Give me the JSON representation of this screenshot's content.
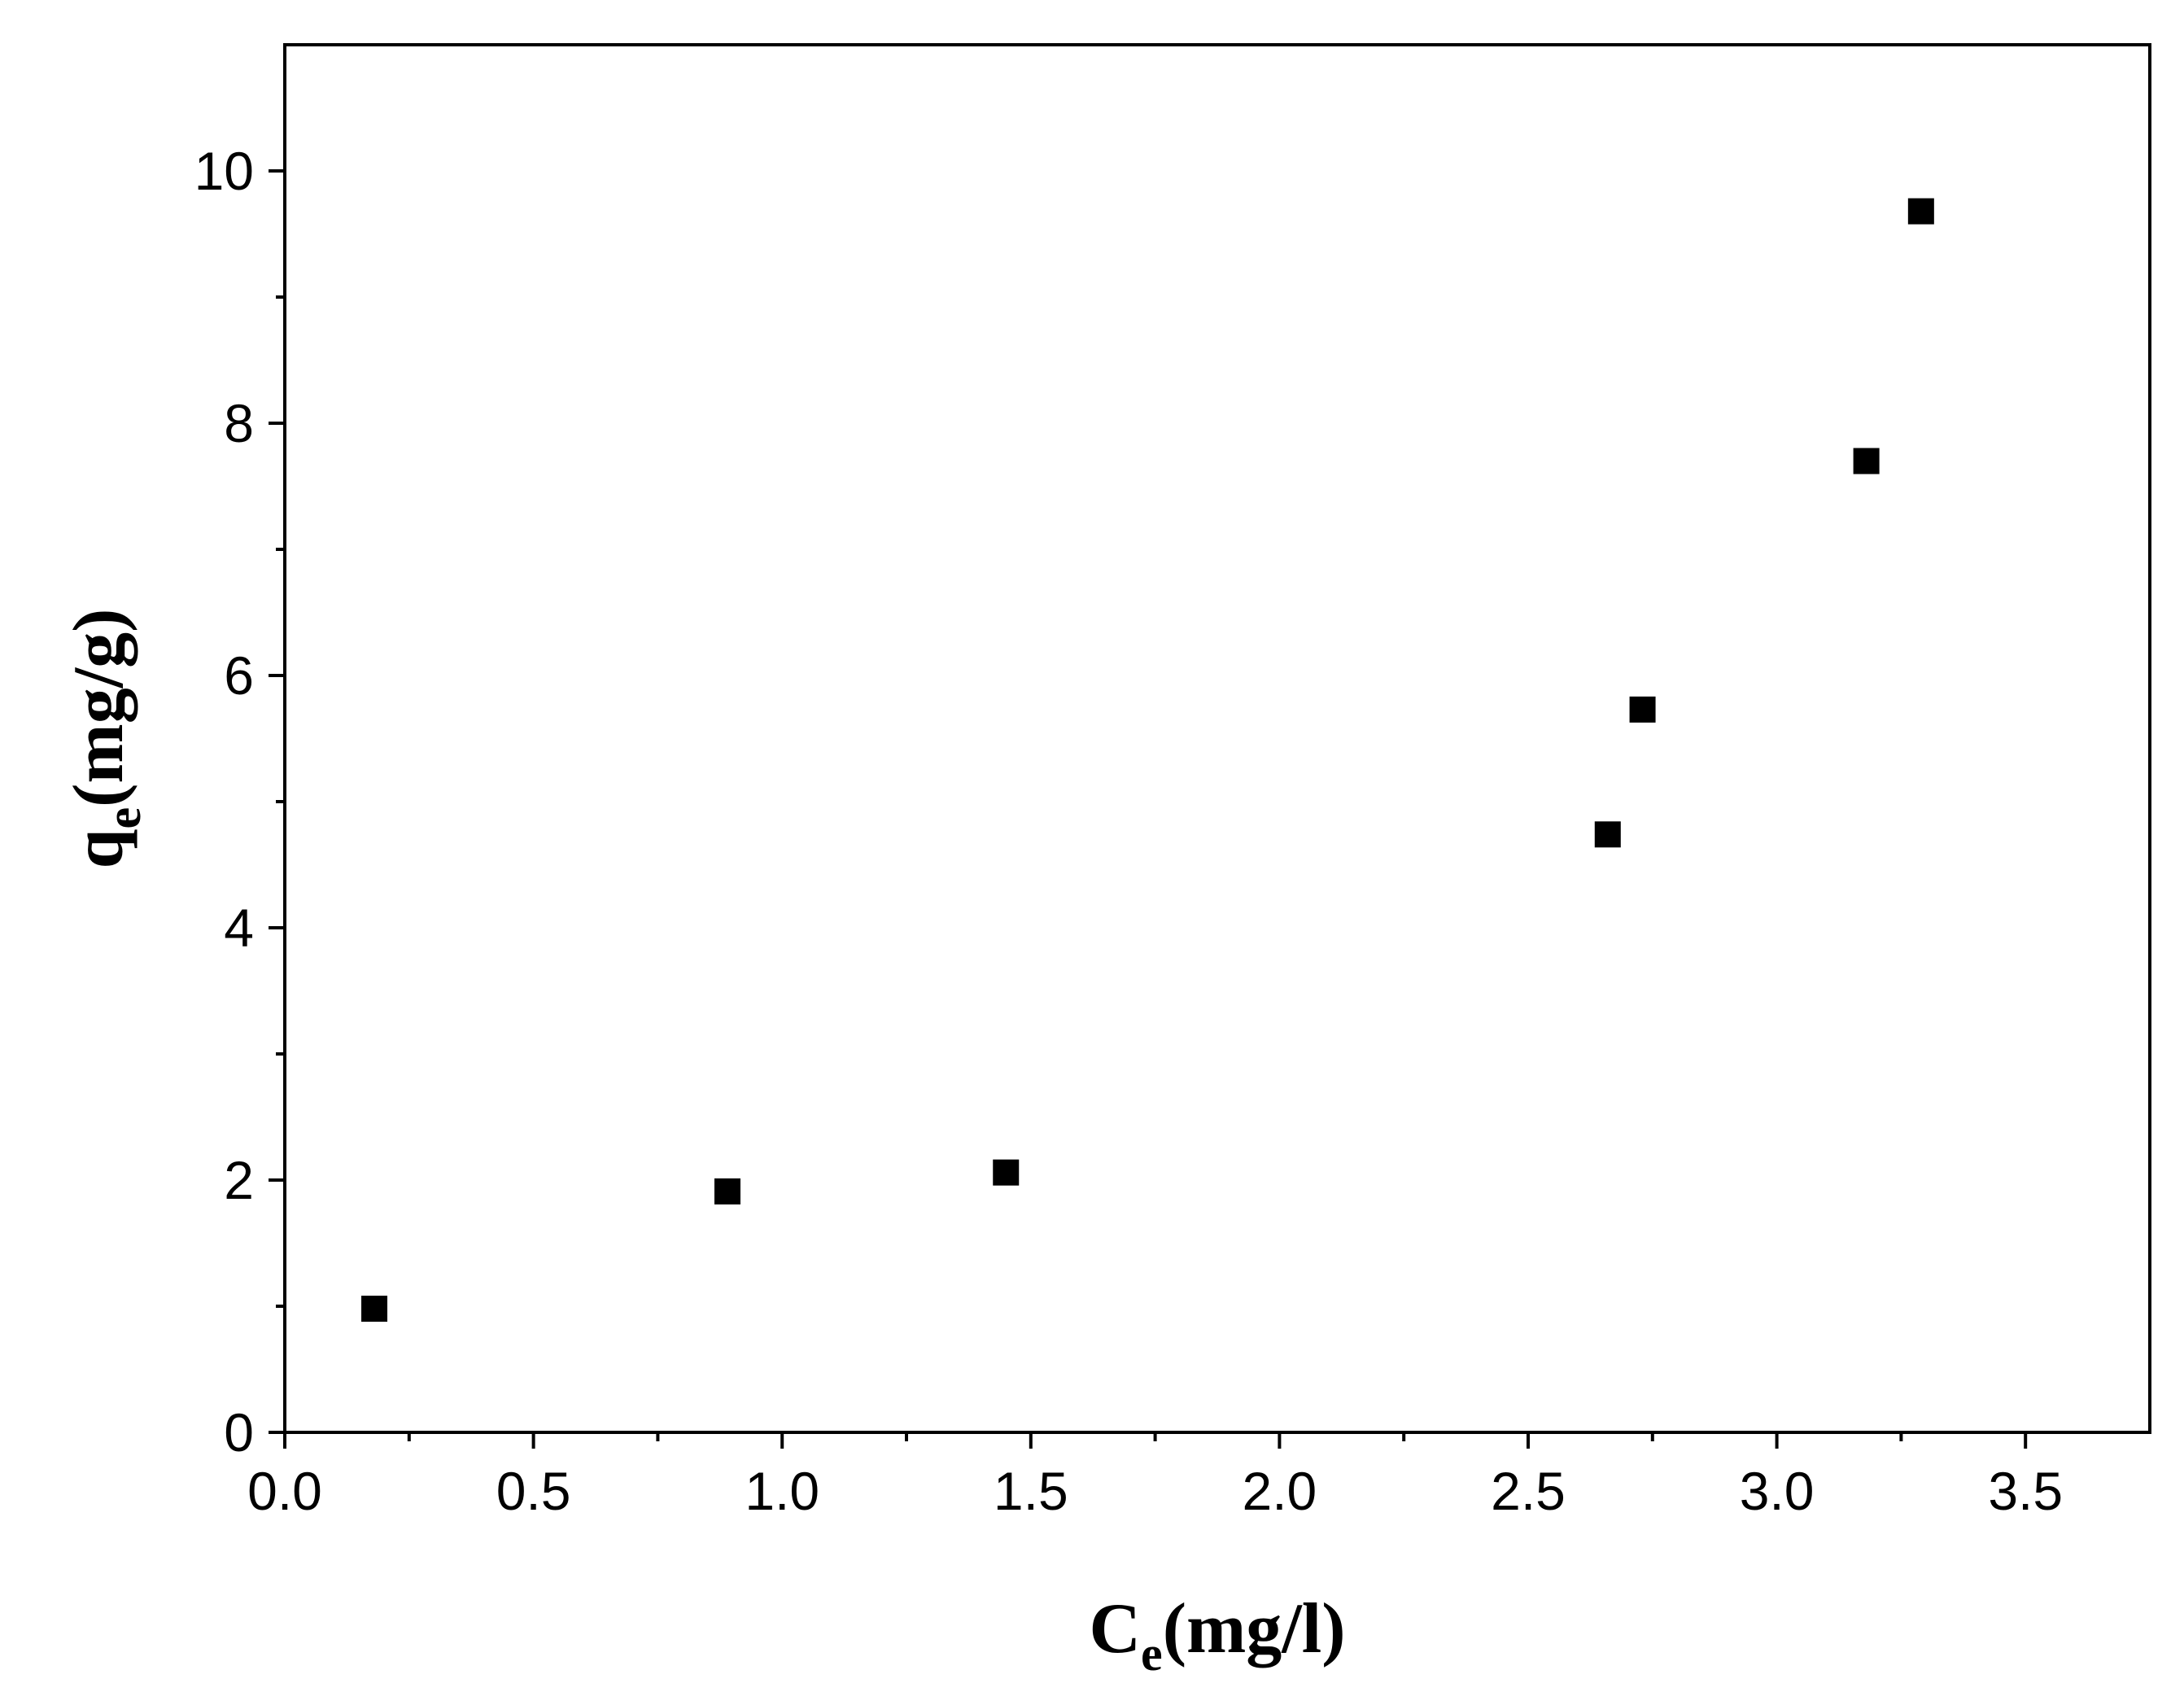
{
  "chart_data": {
    "type": "scatter",
    "title": "",
    "xlabel": {
      "main": "C",
      "sub": "e",
      "rest": "(mg/l)"
    },
    "ylabel": {
      "main": "q",
      "sub": "e",
      "rest": "(mg/g)"
    },
    "xlim": [
      0,
      3.75
    ],
    "ylim": [
      0,
      11
    ],
    "x_ticks": [
      "0.0",
      "0.5",
      "1.0",
      "1.5",
      "2.0",
      "2.5",
      "3.0",
      "3.5"
    ],
    "x_tick_values": [
      0,
      0.5,
      1.0,
      1.5,
      2.0,
      2.5,
      3.0,
      3.5
    ],
    "y_ticks": [
      "0",
      "2",
      "4",
      "6",
      "8",
      "10"
    ],
    "y_tick_values": [
      0,
      2,
      4,
      6,
      8,
      10
    ],
    "grid": false,
    "marker": "square",
    "marker_color": "#000000",
    "series": [
      {
        "points": [
          {
            "x": 0.18,
            "y": 0.98
          },
          {
            "x": 0.89,
            "y": 1.91
          },
          {
            "x": 1.45,
            "y": 2.06
          },
          {
            "x": 2.66,
            "y": 4.74
          },
          {
            "x": 2.73,
            "y": 5.73
          },
          {
            "x": 3.18,
            "y": 7.7
          },
          {
            "x": 3.29,
            "y": 9.68
          }
        ]
      }
    ]
  }
}
